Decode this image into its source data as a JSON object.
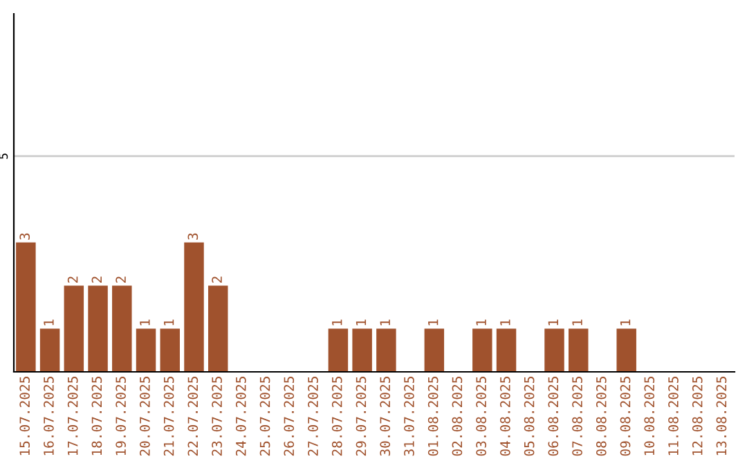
{
  "chart_data": {
    "type": "bar",
    "color": "#a0522d",
    "categories": [
      "15.07.2025",
      "16.07.2025",
      "17.07.2025",
      "18.07.2025",
      "19.07.2025",
      "20.07.2025",
      "21.07.2025",
      "22.07.2025",
      "23.07.2025",
      "24.07.2025",
      "25.07.2025",
      "26.07.2025",
      "27.07.2025",
      "28.07.2025",
      "29.07.2025",
      "30.07.2025",
      "31.07.2025",
      "01.08.2025",
      "02.08.2025",
      "03.08.2025",
      "04.08.2025",
      "05.08.2025",
      "06.08.2025",
      "07.08.2025",
      "08.08.2025",
      "09.08.2025",
      "10.08.2025",
      "11.08.2025",
      "12.08.2025",
      "13.08.2025"
    ],
    "values": [
      3,
      1,
      2,
      2,
      2,
      1,
      1,
      3,
      2,
      0,
      0,
      0,
      0,
      1,
      1,
      1,
      0,
      1,
      0,
      1,
      1,
      0,
      1,
      1,
      0,
      1,
      0,
      0,
      0,
      0
    ],
    "value_labels": [
      "3",
      "1",
      "2",
      "2",
      "2",
      "1",
      "1",
      "3",
      "2",
      null,
      null,
      null,
      null,
      "1",
      "1",
      "1",
      null,
      "1",
      null,
      "1",
      "1",
      null,
      "1",
      "1",
      null,
      "1",
      null,
      null,
      null,
      null
    ],
    "ylim": [
      0,
      8.3
    ],
    "yticks": [
      5
    ],
    "grid": "y"
  }
}
